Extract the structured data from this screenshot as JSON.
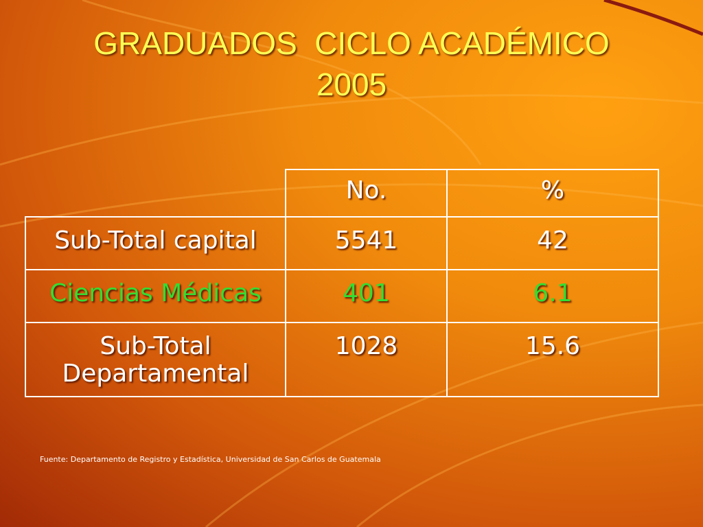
{
  "title": {
    "lines": [
      "GRADUADOS  CICLO ACADÉMICO",
      "2005"
    ]
  },
  "table": {
    "header": [
      "No.",
      "%"
    ],
    "rows": [
      [
        "Sub-Total capital",
        "5541",
        "42"
      ],
      [
        "Ciencias Médicas",
        "401",
        "6.1"
      ],
      [
        "Sub-Total Departamental",
        "1028",
        "15.6"
      ]
    ],
    "highlight_row": 1,
    "highlight_color": "#33dd33"
  },
  "source": "Fuente: Departamento de Registro y Estadística, Universidad de San Carlos de Guatemala"
}
